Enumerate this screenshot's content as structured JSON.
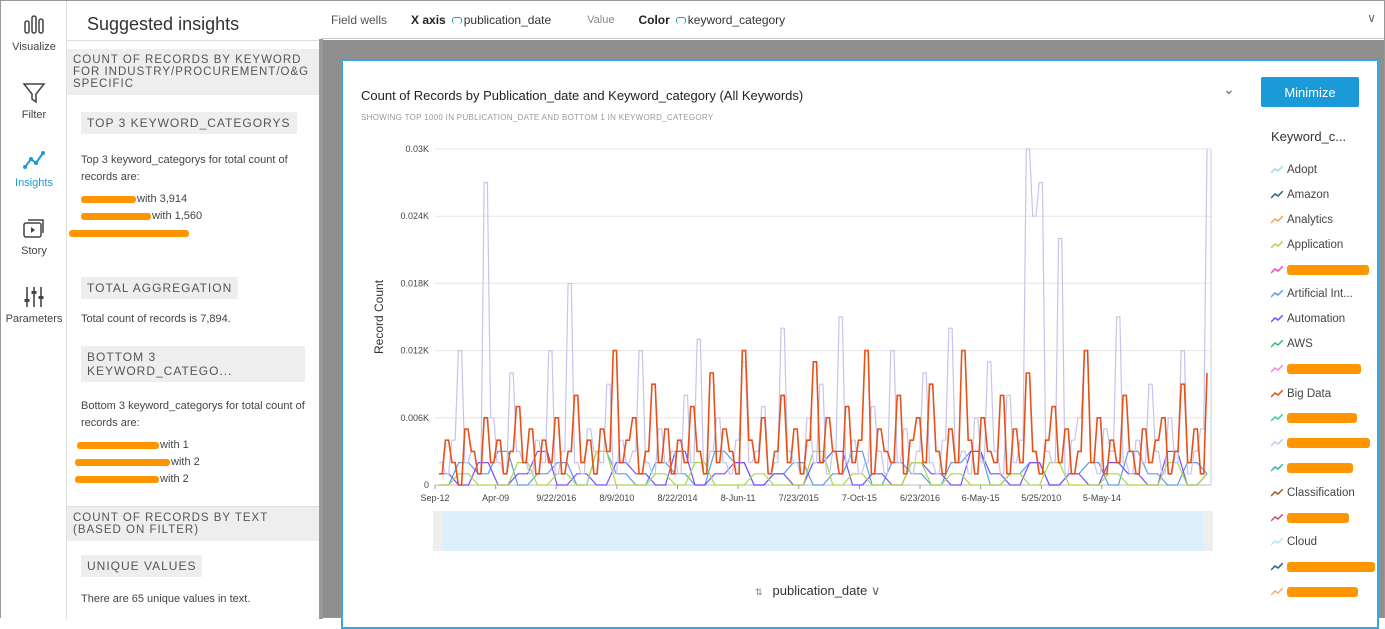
{
  "rail": [
    {
      "label": "Visualize",
      "icon": "bar-chart-icon"
    },
    {
      "label": "Filter",
      "icon": "funnel-icon"
    },
    {
      "label": "Insights",
      "icon": "line-chart-icon",
      "active": true
    },
    {
      "label": "Story",
      "icon": "story-icon"
    },
    {
      "label": "Parameters",
      "icon": "sliders-icon"
    }
  ],
  "panel": {
    "title": "Suggested insights",
    "sections": [
      {
        "heading": "COUNT OF RECORDS BY KEYWORD FOR INDUSTRY/PROCUREMENT/O&G SPECIFIC"
      },
      {
        "heading": "COUNT OF RECORDS BY TEXT (BASED ON FILTER)"
      }
    ],
    "top3": {
      "heading": "TOP 3 KEYWORD_CATEGORYS",
      "text": "Top 3 keyword_categorys for total count of records are:",
      "items": [
        "with 3,914",
        "with 1,560",
        ""
      ]
    },
    "total": {
      "heading": "TOTAL AGGREGATION",
      "text": "Total count of records is 7,894."
    },
    "bottom3": {
      "heading": "BOTTOM 3 KEYWORD_CATEGO...",
      "text": "Bottom 3 keyword_categorys for total count of records are:",
      "items": [
        "with 1",
        "with 2",
        "with 2"
      ]
    },
    "unique": {
      "heading": "UNIQUE VALUES",
      "text": "There are 65 unique values in text."
    }
  },
  "wells": {
    "label": "Field wells",
    "x_label": "X axis",
    "x_field": "publication_date",
    "value_label": "Value",
    "color_label": "Color",
    "color_field": "keyword_category"
  },
  "card": {
    "minimize": "Minimize",
    "x_field_menu": "publication_date"
  },
  "legend": {
    "title": "Keyword_c...",
    "items": [
      {
        "label": "Adopt",
        "color": "#9fd8f0"
      },
      {
        "label": "Amazon",
        "color": "#2f5f80"
      },
      {
        "label": "Analytics",
        "color": "#f5a05a"
      },
      {
        "label": "Application",
        "color": "#a6d94a"
      },
      {
        "label": "",
        "color": "#e74cc0"
      },
      {
        "label": "Artificial Int...",
        "color": "#5b9ee8"
      },
      {
        "label": "Automation",
        "color": "#7c4dff"
      },
      {
        "label": "AWS",
        "color": "#2fbf71"
      },
      {
        "label": "",
        "color": "#f08ad0"
      },
      {
        "label": "Big Data",
        "color": "#e8501a"
      },
      {
        "label": "",
        "color": "#2fd6a0"
      },
      {
        "label": "",
        "color": "#c5c5ec"
      },
      {
        "label": "",
        "color": "#31b3b3"
      },
      {
        "label": "Classification",
        "color": "#9c5d2a"
      },
      {
        "label": "",
        "color": "#c0508a"
      },
      {
        "label": "Cloud",
        "color": "#b5e4f5"
      },
      {
        "label": "",
        "color": "#2f5f80"
      },
      {
        "label": "",
        "color": "#f5b06a"
      }
    ]
  },
  "chart_data": {
    "type": "line",
    "title": "Count of Records by Publication_date and Keyword_category (All Keywords)",
    "subtitle": "SHOWING TOP 1000 IN PUBLICATION_DATE AND BOTTOM 1 IN KEYWORD_CATEGORY",
    "xlabel": "publication_date",
    "ylabel": "Record Count",
    "ylim": [
      0,
      30
    ],
    "yticks": [
      {
        "v": 0,
        "label": "0"
      },
      {
        "v": 6,
        "label": "0.006K"
      },
      {
        "v": 12,
        "label": "0.012K"
      },
      {
        "v": 18,
        "label": "0.018K"
      },
      {
        "v": 24,
        "label": "0.024K"
      },
      {
        "v": 30,
        "label": "0.03K"
      }
    ],
    "xticks": [
      "Sep-12",
      "Apr-09",
      "9/22/2016",
      "8/9/2010",
      "8/22/2014",
      "8-Jun-11",
      "7/23/2015",
      "7-Oct-15",
      "6/23/2016",
      "6-May-15",
      "5/25/2010",
      "5-May-14"
    ],
    "series": [
      {
        "name": "(lavender series)",
        "color": "#c5c5ec",
        "values": [
          2,
          1,
          4,
          12,
          2,
          3,
          1,
          27,
          6,
          2,
          1,
          10,
          3,
          2,
          1,
          4,
          2,
          12,
          1,
          3,
          18,
          2,
          1,
          5,
          3,
          2,
          9,
          1,
          4,
          2,
          3,
          12,
          2,
          1,
          5,
          2,
          3,
          1,
          8,
          2,
          13,
          1,
          3,
          6,
          2,
          1,
          4,
          11,
          2,
          3,
          7,
          1,
          2,
          14,
          3,
          2,
          1,
          6,
          2,
          9,
          1,
          3,
          15,
          2,
          4,
          1,
          2,
          7,
          3,
          1,
          12,
          2,
          5,
          1,
          3,
          10,
          2,
          1,
          4,
          14,
          2,
          3,
          1,
          6,
          2,
          11,
          3,
          1,
          8,
          2,
          4,
          30,
          24,
          27,
          3,
          2,
          22,
          1,
          4,
          6,
          12,
          2,
          1,
          5,
          3,
          15,
          2,
          1,
          4,
          2,
          9,
          3,
          1,
          6,
          2,
          12,
          1,
          3,
          5,
          30
        ]
      },
      {
        "name": "Big Data",
        "color": "#e8501a",
        "values": [
          1,
          4,
          2,
          0,
          5,
          3,
          1,
          6,
          2,
          4,
          1,
          3,
          7,
          2,
          5,
          1,
          4,
          2,
          6,
          1,
          3,
          8,
          2,
          4,
          1,
          5,
          3,
          12,
          2,
          4,
          6,
          1,
          3,
          9,
          2,
          5,
          1,
          4,
          2,
          7,
          3,
          1,
          10,
          2,
          5,
          3,
          1,
          12,
          4,
          2,
          6,
          1,
          3,
          8,
          2,
          5,
          1,
          4,
          11,
          2,
          6,
          3,
          1,
          7,
          2,
          4,
          12,
          1,
          5,
          3,
          2,
          8,
          1,
          4,
          6,
          2,
          9,
          3,
          1,
          5,
          2,
          12,
          4,
          1,
          6,
          3,
          2,
          8,
          1,
          5,
          2,
          10,
          3,
          1,
          4,
          7,
          2,
          5,
          1,
          3,
          12,
          2,
          6,
          1,
          4,
          2,
          8,
          3,
          1,
          5,
          2,
          4,
          6,
          1,
          3,
          9,
          2,
          5,
          1,
          10
        ]
      },
      {
        "name": "Artificial Int...",
        "color": "#5b9ee8",
        "values": [
          0,
          2,
          1,
          3,
          0,
          1,
          2,
          0,
          3,
          1,
          0,
          2,
          1,
          0,
          3,
          2,
          0,
          1,
          2,
          0,
          1,
          3,
          0,
          2,
          1,
          0,
          2,
          3,
          0,
          1,
          2,
          0,
          1,
          2,
          0,
          3,
          1,
          0,
          2,
          1
        ]
      },
      {
        "name": "Automation",
        "color": "#7c4dff",
        "values": [
          1,
          0,
          2,
          0,
          1,
          3,
          0,
          1,
          0,
          2,
          1,
          0,
          3,
          0,
          1,
          2,
          0,
          1,
          0,
          2,
          3,
          0,
          1,
          0,
          2,
          1,
          0,
          3,
          1,
          0,
          2,
          0,
          1,
          0,
          2,
          1,
          0,
          3,
          0,
          1
        ]
      },
      {
        "name": "Application",
        "color": "#a6d94a",
        "values": [
          0,
          1,
          0,
          0,
          2,
          0,
          1,
          0,
          3,
          0,
          0,
          1,
          0,
          2,
          0,
          0,
          1,
          0,
          0,
          3,
          0,
          1,
          0,
          0,
          2,
          0,
          1,
          0,
          0,
          1,
          0,
          2,
          0,
          0,
          1,
          0,
          0,
          2,
          0,
          1
        ]
      }
    ]
  }
}
